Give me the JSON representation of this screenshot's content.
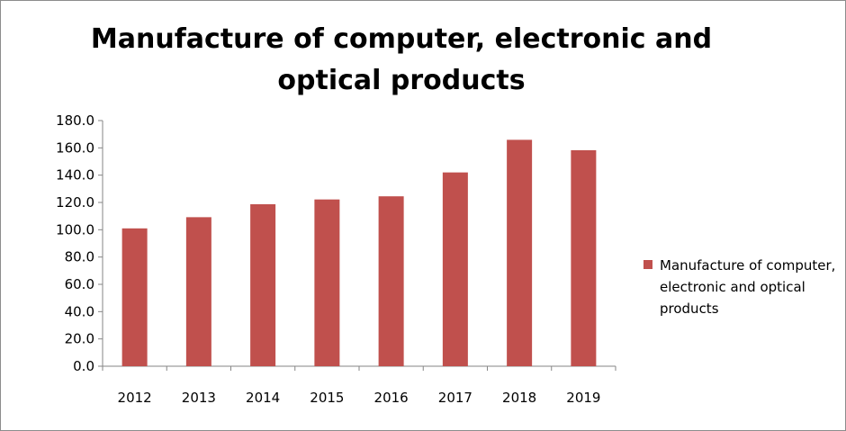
{
  "chart_data": {
    "type": "bar",
    "title": "Manufacture of computer, electronic and optical products",
    "categories": [
      "2012",
      "2013",
      "2014",
      "2015",
      "2016",
      "2017",
      "2018",
      "2019"
    ],
    "series": [
      {
        "name": "Manufacture of computer, electronic and optical products",
        "values": [
          101.0,
          109.2,
          118.7,
          122.2,
          124.5,
          142.0,
          165.9,
          158.3
        ],
        "color": "#C0504D"
      }
    ],
    "ylim": [
      0,
      180
    ],
    "yticks": [
      "0.0",
      "20.0",
      "40.0",
      "60.0",
      "80.0",
      "100.0",
      "120.0",
      "140.0",
      "160.0",
      "180.0"
    ],
    "grid": false,
    "legend_position": "right"
  }
}
